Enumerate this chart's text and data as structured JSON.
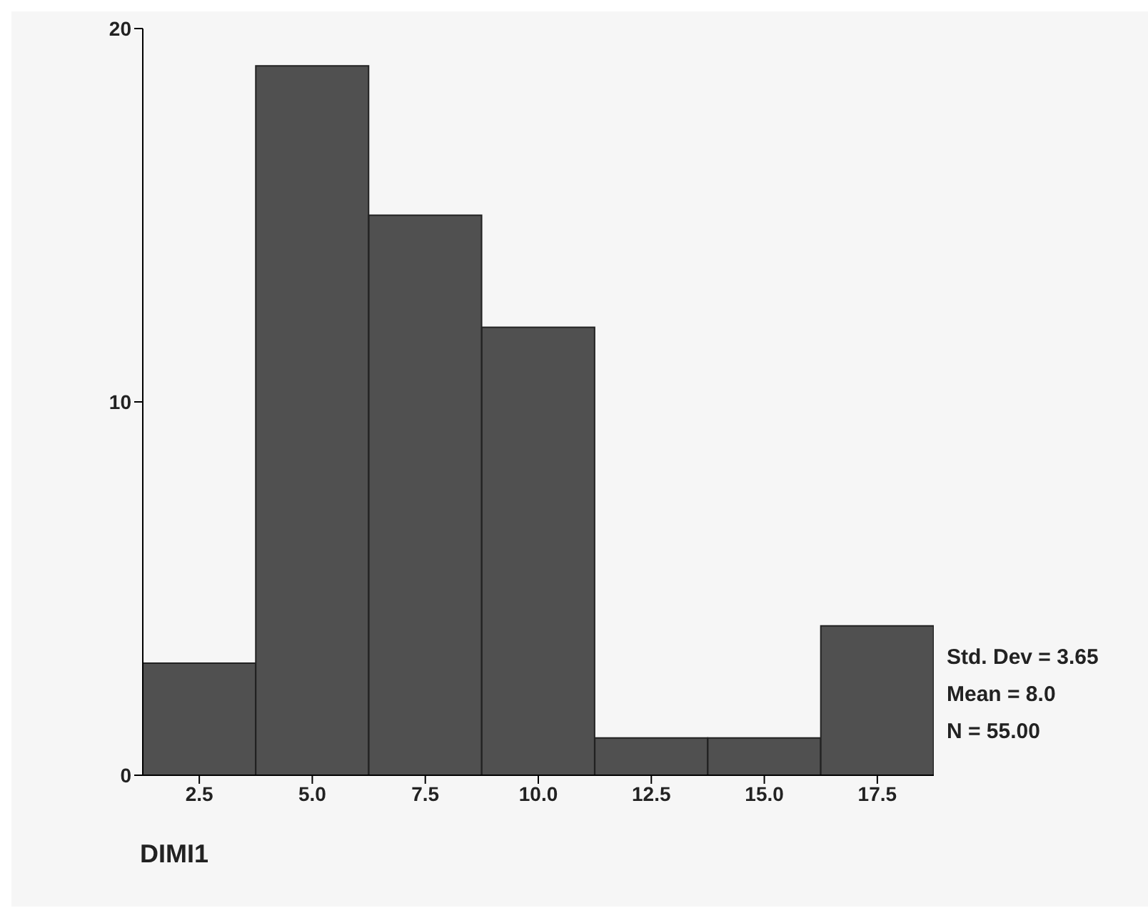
{
  "chart_data": {
    "type": "histogram",
    "xlabel": "DIMI1",
    "bins": [
      1.25,
      3.75,
      6.25,
      8.75,
      11.25,
      13.75,
      16.25,
      18.75
    ],
    "values": [
      3,
      19,
      15,
      12,
      1,
      1,
      4
    ],
    "color": "#505050",
    "xlim": [
      1.25,
      18.75
    ],
    "xticks": [
      2.5,
      {
        "value": 5,
        "label": "5.0"
      },
      7.5,
      {
        "value": 10,
        "label": "10.0"
      },
      12.5,
      {
        "value": 15,
        "label": "15.0"
      },
      17.5
    ],
    "ylim": [
      0,
      20
    ],
    "yticks": [
      0,
      10,
      20
    ],
    "annotations": [
      "Std. Dev = 3.65",
      "Mean = 8.0",
      "N = 55.00"
    ]
  }
}
